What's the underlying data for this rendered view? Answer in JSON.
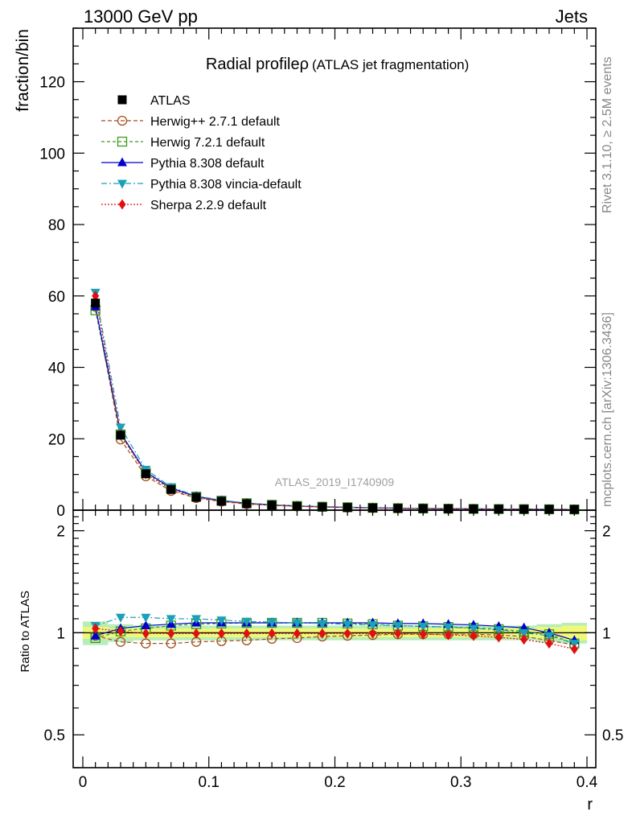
{
  "header": {
    "left": "13000 GeV pp",
    "right": "Jets"
  },
  "side": {
    "rivet": "Rivet 3.1.10, ≥ 2.5M events",
    "mcplots": "mcplots.cern.ch [arXiv:1306.3436]"
  },
  "watermark": "ATLAS_2019_I1740909",
  "colors": {
    "atlas": "#000000",
    "herwigpp": "#a0521e",
    "herwig7": "#3a9a1e",
    "pythia": "#0000cc",
    "vincia": "#1aa0b8",
    "sherpa": "#e01010",
    "band_inner": "#f0f87a",
    "band_outer": "#b8ecb8"
  },
  "chart_data": {
    "type": "line",
    "title": "Radial profileρ (ATLAS jet fragmentation)",
    "title_main": "Radial profileρ",
    "title_sub": "(ATLAS jet fragmentation)",
    "xlabel": "r",
    "ylabel": "fraction/bin",
    "ratio_ylabel": "Ratio to ATLAS",
    "xlim": [
      0,
      0.4
    ],
    "ylim": [
      0,
      135
    ],
    "ratio_ylim": [
      0.4,
      2.3
    ],
    "ratio_log": true,
    "x_ticks": [
      "0",
      "0.1",
      "0.2",
      "0.3",
      "0.4"
    ],
    "x_tick_values": [
      0,
      0.1,
      0.2,
      0.3,
      0.4
    ],
    "y_ticks": [
      "0",
      "20",
      "40",
      "60",
      "80",
      "100",
      "120"
    ],
    "y_tick_values": [
      0,
      20,
      40,
      60,
      80,
      100,
      120
    ],
    "ratio_ticks": [
      "0.5",
      "1",
      "2"
    ],
    "ratio_tick_values": [
      0.5,
      1,
      2
    ],
    "legend_position": "top-left",
    "x": [
      0.01,
      0.03,
      0.05,
      0.07,
      0.09,
      0.11,
      0.13,
      0.15,
      0.17,
      0.19,
      0.21,
      0.23,
      0.25,
      0.27,
      0.29,
      0.31,
      0.33,
      0.35,
      0.37,
      0.39
    ],
    "band_outer": [
      0.08,
      0.06,
      0.05,
      0.05,
      0.05,
      0.05,
      0.05,
      0.05,
      0.05,
      0.05,
      0.05,
      0.05,
      0.05,
      0.05,
      0.05,
      0.05,
      0.05,
      0.05,
      0.06,
      0.07
    ],
    "band_inner": [
      0.04,
      0.03,
      0.03,
      0.03,
      0.03,
      0.03,
      0.03,
      0.03,
      0.03,
      0.03,
      0.03,
      0.03,
      0.03,
      0.03,
      0.03,
      0.03,
      0.03,
      0.03,
      0.04,
      0.05
    ],
    "series": [
      {
        "name": "ATLAS",
        "key": "atlas",
        "marker": "square-filled",
        "dash": "none",
        "values": [
          58,
          21,
          10.2,
          5.8,
          3.6,
          2.5,
          1.8,
          1.4,
          1.1,
          0.9,
          0.75,
          0.62,
          0.52,
          0.45,
          0.39,
          0.34,
          0.3,
          0.27,
          0.24,
          0.21
        ],
        "ratio": [
          1,
          1,
          1,
          1,
          1,
          1,
          1,
          1,
          1,
          1,
          1,
          1,
          1,
          1,
          1,
          1,
          1,
          1,
          1,
          1
        ]
      },
      {
        "name": "Herwig++ 2.7.1 default",
        "key": "herwigpp",
        "marker": "circle-open",
        "dash": "5,3",
        "values": [
          57,
          19.8,
          9.5,
          5.4,
          3.4,
          2.4,
          1.72,
          1.35,
          1.06,
          0.88,
          0.73,
          0.61,
          0.51,
          0.44,
          0.38,
          0.33,
          0.29,
          0.26,
          0.23,
          0.19
        ],
        "ratio": [
          0.98,
          0.94,
          0.93,
          0.93,
          0.94,
          0.945,
          0.95,
          0.96,
          0.965,
          0.975,
          0.98,
          0.985,
          0.99,
          0.99,
          0.99,
          0.99,
          0.985,
          0.975,
          0.95,
          0.92
        ]
      },
      {
        "name": "Herwig 7.2.1 default",
        "key": "herwig7",
        "marker": "square-open",
        "dash": "4,3",
        "values": [
          56,
          21.2,
          10.5,
          6.1,
          3.8,
          2.65,
          1.95,
          1.5,
          1.18,
          0.97,
          0.81,
          0.67,
          0.56,
          0.48,
          0.41,
          0.36,
          0.31,
          0.28,
          0.24,
          0.2
        ],
        "ratio": [
          0.965,
          1.01,
          1.03,
          1.05,
          1.06,
          1.065,
          1.07,
          1.07,
          1.07,
          1.07,
          1.065,
          1.06,
          1.05,
          1.045,
          1.04,
          1.035,
          1.025,
          1.01,
          0.99,
          0.93
        ]
      },
      {
        "name": "Pythia 8.308 default",
        "key": "pythia",
        "marker": "triangle-up-filled",
        "dash": "none",
        "values": [
          57,
          21.6,
          10.7,
          6.2,
          3.85,
          2.68,
          1.95,
          1.5,
          1.19,
          0.97,
          0.81,
          0.67,
          0.56,
          0.48,
          0.42,
          0.36,
          0.32,
          0.28,
          0.24,
          0.2
        ],
        "ratio": [
          0.98,
          1.03,
          1.05,
          1.06,
          1.07,
          1.07,
          1.07,
          1.07,
          1.07,
          1.07,
          1.07,
          1.07,
          1.065,
          1.065,
          1.06,
          1.055,
          1.045,
          1.035,
          1.0,
          0.95
        ]
      },
      {
        "name": "Pythia 8.308 vincia-default",
        "key": "vincia",
        "marker": "triangle-down-filled",
        "dash": "7,3,2,3",
        "values": [
          61,
          23.2,
          11.4,
          6.5,
          4.0,
          2.8,
          1.98,
          1.51,
          1.18,
          0.96,
          0.8,
          0.66,
          0.55,
          0.47,
          0.41,
          0.35,
          0.31,
          0.27,
          0.24,
          0.2
        ],
        "ratio": [
          1.05,
          1.11,
          1.11,
          1.1,
          1.1,
          1.09,
          1.08,
          1.075,
          1.07,
          1.065,
          1.06,
          1.055,
          1.05,
          1.045,
          1.04,
          1.03,
          1.02,
          1.0,
          0.98,
          0.93
        ]
      },
      {
        "name": "Sherpa 2.2.9 default",
        "key": "sherpa",
        "marker": "diamond-filled",
        "dash": "2,2",
        "values": [
          60,
          21.2,
          10.1,
          5.8,
          3.6,
          2.5,
          1.8,
          1.38,
          1.09,
          0.89,
          0.74,
          0.61,
          0.52,
          0.44,
          0.38,
          0.33,
          0.29,
          0.26,
          0.23,
          0.19
        ],
        "ratio": [
          1.03,
          1.01,
          0.995,
          0.995,
          0.995,
          0.995,
          0.995,
          0.995,
          0.995,
          0.995,
          0.995,
          0.995,
          0.995,
          0.99,
          0.985,
          0.98,
          0.97,
          0.955,
          0.93,
          0.895
        ]
      }
    ]
  }
}
